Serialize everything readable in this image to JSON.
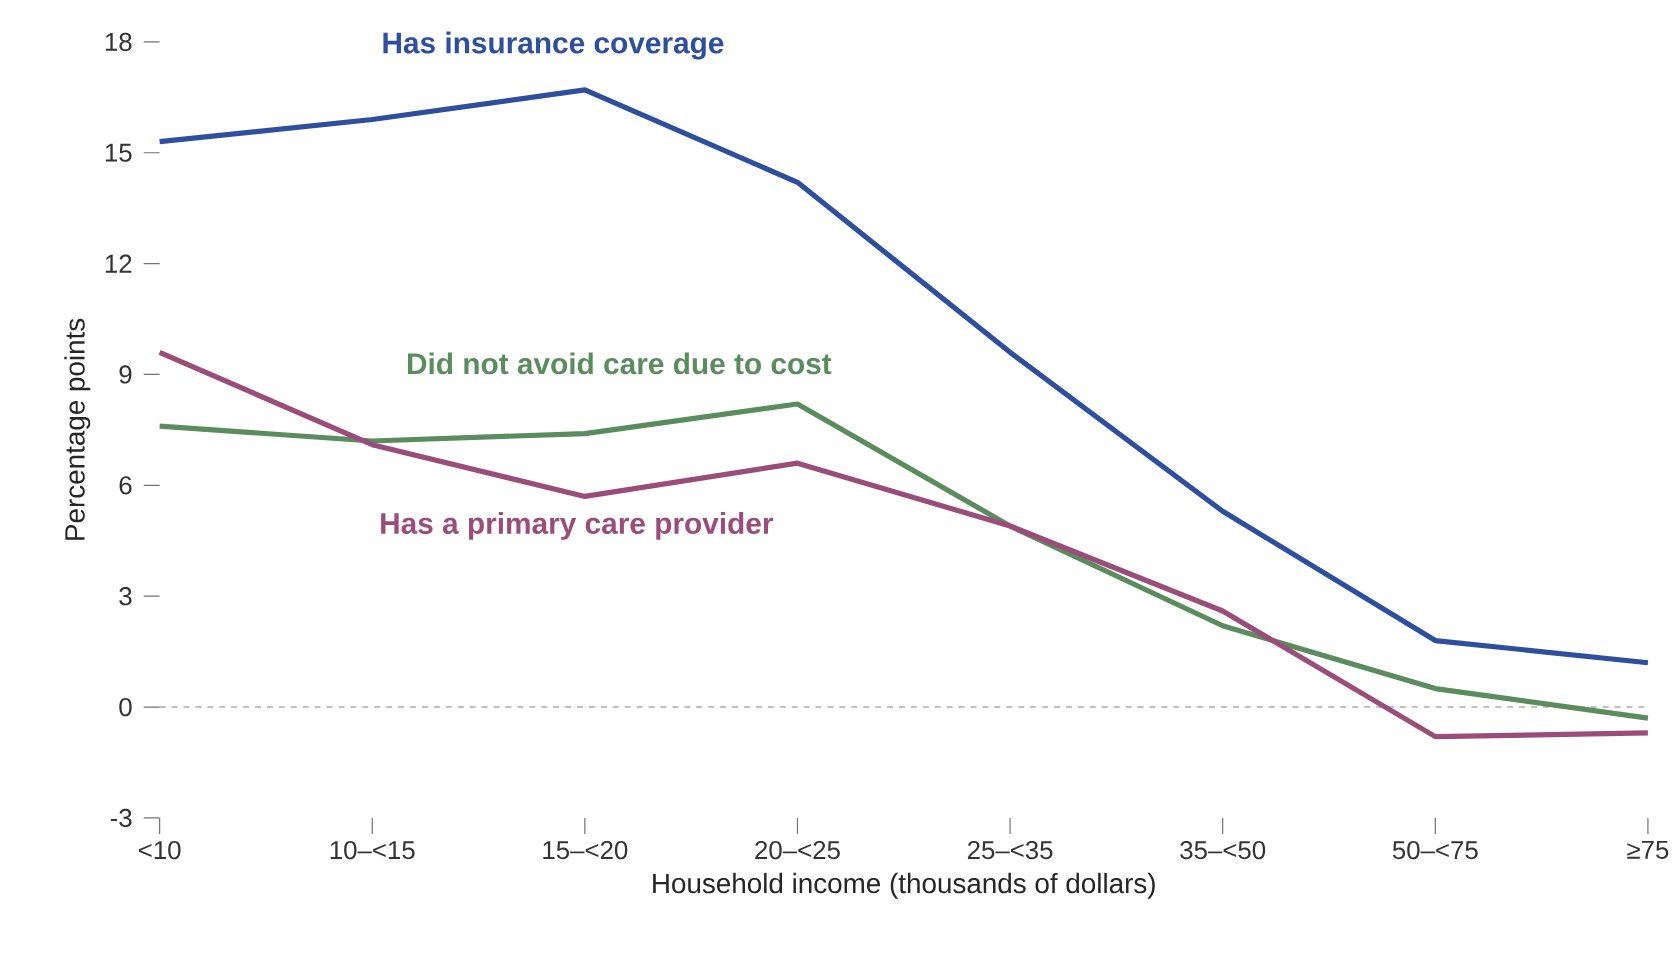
{
  "chart_data": {
    "type": "line",
    "xlabel": "Household income (thousands of dollars)",
    "ylabel": "Percentage points",
    "categories": [
      "<10",
      "10–<15",
      "15–<20",
      "20–<25",
      "25–<35",
      "35–<50",
      "50–<75",
      "≥75"
    ],
    "series": [
      {
        "name": "Has insurance coverage",
        "color": "#2e4e9e",
        "values": [
          15.3,
          15.9,
          16.7,
          14.2,
          9.6,
          5.3,
          1.8,
          1.2
        ]
      },
      {
        "name": "Did not avoid care due to cost",
        "color": "#5b8c5e",
        "values": [
          7.6,
          7.2,
          7.4,
          8.2,
          4.9,
          2.2,
          0.5,
          -0.3
        ]
      },
      {
        "name": "Has a primary care provider",
        "color": "#9a4d7b",
        "values": [
          9.6,
          7.1,
          5.7,
          6.6,
          4.9,
          2.6,
          -0.8,
          -0.7
        ]
      }
    ],
    "ylim": [
      -3,
      18
    ],
    "yticks": [
      -3,
      0,
      3,
      6,
      9,
      12,
      15,
      18
    ],
    "ref_lines": [
      {
        "axis": "y",
        "value": 0,
        "color": "#aaaaaa",
        "line_style": "dashed"
      }
    ],
    "legend": false,
    "grid": false,
    "marker": "none",
    "line_style": "solid"
  }
}
